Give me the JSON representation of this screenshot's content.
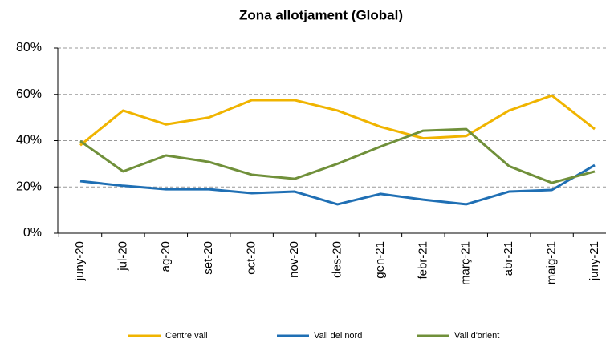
{
  "chart_data": {
    "type": "line",
    "title": "Zona allotjament (Global)",
    "categories": [
      "juny-20",
      "jul-20",
      "ag-20",
      "set-20",
      "oct-20",
      "nov-20",
      "des-20",
      "gen-21",
      "febr-21",
      "març-21",
      "abr-21",
      "maig-21",
      "juny-21"
    ],
    "series": [
      {
        "name": "Centre vall",
        "color": "#f0b400",
        "values": [
          38,
          53,
          47,
          50,
          57.5,
          57.5,
          53,
          46,
          41,
          42,
          53,
          59.5,
          45
        ]
      },
      {
        "name": "Vall del nord",
        "color": "#1f6fb4",
        "values": [
          22.5,
          20.5,
          19,
          19,
          17.3,
          18,
          12.5,
          17,
          14.5,
          12.5,
          18,
          18.7,
          29.4
        ]
      },
      {
        "name": "Vall d'orient",
        "color": "#70903a",
        "values": [
          39.8,
          26.7,
          33.6,
          30.8,
          25.3,
          23.5,
          30,
          37.4,
          44.3,
          45,
          29,
          21.8,
          26.7
        ]
      }
    ],
    "ylim": [
      0,
      80
    ],
    "yticks": [
      {
        "value": 0,
        "label": "0%"
      },
      {
        "value": 20,
        "label": "20%"
      },
      {
        "value": 40,
        "label": "40%"
      },
      {
        "value": 60,
        "label": "60%"
      },
      {
        "value": 80,
        "label": "80%"
      }
    ],
    "grid": true,
    "legend": "bottom"
  }
}
